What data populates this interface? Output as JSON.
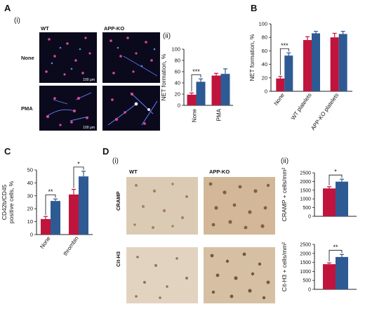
{
  "colors": {
    "wt": "#c0143c",
    "ko": "#2e5a94",
    "axis": "#222222"
  },
  "panels": {
    "A": {
      "letter": "A",
      "sub_i": "(i)",
      "sub_ii": "(ii)",
      "col_wt": "WT",
      "col_ko": "APP-KO",
      "row_none": "None",
      "row_pma": "PMA",
      "scale_bar": "100 μm"
    },
    "B": {
      "letter": "B"
    },
    "C": {
      "letter": "C"
    },
    "D": {
      "letter": "D",
      "sub_i": "(i)",
      "sub_ii": "(ii)",
      "col_wt": "WT",
      "col_ko": "APP-KO",
      "row_cramp": "CRAMP",
      "row_cith3": "Cit-H3"
    }
  },
  "chart_data": [
    {
      "id": "A-ii",
      "type": "bar",
      "ylabel": "NET formation, %",
      "ylim": [
        0,
        100
      ],
      "yticks": [
        0,
        20,
        40,
        60,
        80,
        100
      ],
      "categories": [
        "None",
        "PMA"
      ],
      "series": [
        {
          "values": [
            19,
            53
          ],
          "err": [
            3,
            4
          ]
        },
        {
          "values": [
            42,
            56
          ],
          "err": [
            5,
            9
          ]
        }
      ],
      "significance": [
        {
          "label": "***"
        }
      ]
    },
    {
      "id": "B",
      "type": "bar",
      "ylabel": "NET formation, %",
      "ylim": [
        0,
        100
      ],
      "yticks": [
        0,
        20,
        40,
        60,
        80,
        100
      ],
      "categories": [
        "None",
        "WT platelets",
        "APP-KO platelets"
      ],
      "series": [
        {
          "values": [
            19,
            76,
            80
          ],
          "err": [
            3,
            5,
            6
          ]
        },
        {
          "values": [
            53,
            86,
            85
          ],
          "err": [
            4,
            3,
            4
          ]
        }
      ],
      "significance": [
        {
          "label": "***"
        }
      ]
    },
    {
      "id": "C",
      "type": "bar",
      "ylabel": "CD42b/CD45 positive cells, %",
      "ylim": [
        0,
        50
      ],
      "yticks": [
        0,
        10,
        20,
        30,
        40,
        50
      ],
      "categories": [
        "None",
        "thrombin"
      ],
      "series": [
        {
          "values": [
            12,
            31
          ],
          "err": [
            2,
            4
          ]
        },
        {
          "values": [
            26,
            45
          ],
          "err": [
            1.5,
            4
          ]
        }
      ],
      "significance": [
        {
          "label": "**"
        },
        {
          "label": "*"
        }
      ]
    },
    {
      "id": "D-ii-top",
      "type": "bar",
      "ylabel": "CRAMP + cells/mm²",
      "ylim": [
        0,
        2500
      ],
      "yticks": [
        0,
        500,
        1000,
        1500,
        2000,
        2500
      ],
      "categories": [
        ""
      ],
      "series": [
        {
          "values": [
            1600
          ],
          "err": [
            100
          ]
        },
        {
          "values": [
            1990
          ],
          "err": [
            140
          ]
        }
      ],
      "significance": [
        {
          "label": "*"
        }
      ]
    },
    {
      "id": "D-ii-bottom",
      "type": "bar",
      "ylabel": "Cit-H3 + cells/mm²",
      "ylim": [
        0,
        2500
      ],
      "yticks": [
        0,
        500,
        1000,
        1500,
        2000,
        2500
      ],
      "categories": [
        ""
      ],
      "series": [
        {
          "values": [
            1400
          ],
          "err": [
            70
          ]
        },
        {
          "values": [
            1800
          ],
          "err": [
            140
          ]
        }
      ],
      "significance": [
        {
          "label": "**"
        }
      ]
    }
  ]
}
